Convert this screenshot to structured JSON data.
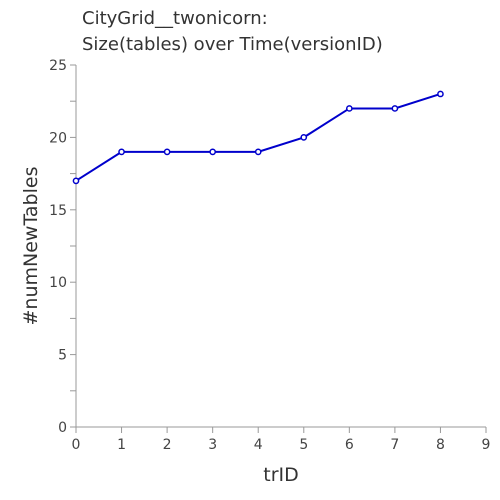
{
  "chart_data": {
    "type": "line",
    "title_lines": [
      "CityGrid__twonicorn:",
      "Size(tables) over Time(versionID)"
    ],
    "xlabel": "trID",
    "ylabel": "#numNewTables",
    "xlim": [
      0,
      9
    ],
    "ylim": [
      0,
      25
    ],
    "x_ticks": [
      0,
      1,
      2,
      3,
      4,
      5,
      6,
      7,
      8,
      9
    ],
    "y_ticks": [
      0,
      5,
      10,
      15,
      20,
      25
    ],
    "y_minor_step": 2.5,
    "grid": false,
    "legend": "none",
    "series": [
      {
        "color": "#0000cc",
        "x": [
          0,
          1,
          2,
          3,
          4,
          5,
          6,
          7,
          8
        ],
        "y": [
          17,
          19,
          19,
          19,
          19,
          20,
          22,
          22,
          23
        ]
      }
    ]
  }
}
